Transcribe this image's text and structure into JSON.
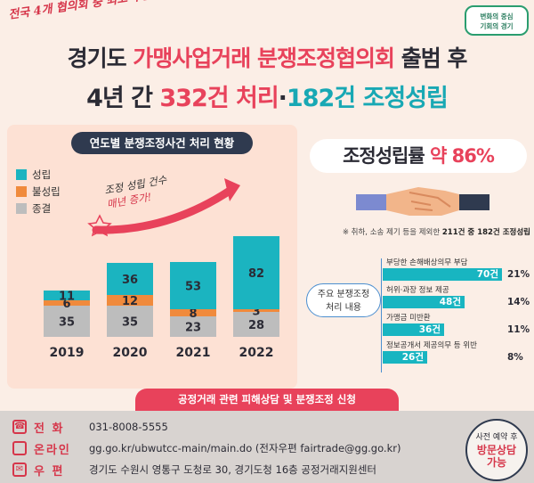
{
  "header": {
    "tagline": "전국 4개 협의회 중 최고 수준!",
    "logo_line1": "변화의 중심",
    "logo_line2": "기회의 경기",
    "title_line1_a": "경기도 ",
    "title_line1_b": "가맹사업거래 분쟁조정협의회",
    "title_line1_c": " 출범 후",
    "title_line2_a": "4년 간 ",
    "title_line2_b": "332건 처리",
    "title_line2_c": "·",
    "title_line2_d": "182건 조정성립"
  },
  "chart_data": {
    "type": "bar",
    "title": "연도별 분쟁조정사건 처리 현황",
    "categories": [
      "2019",
      "2020",
      "2021",
      "2022"
    ],
    "series": [
      {
        "name": "종결",
        "values": [
          35,
          35,
          23,
          28
        ],
        "color": "#bdbdbd"
      },
      {
        "name": "불성립",
        "values": [
          6,
          12,
          8,
          3
        ],
        "color": "#f08a3c"
      },
      {
        "name": "성립",
        "values": [
          11,
          36,
          53,
          82
        ],
        "color": "#1bb4c0"
      }
    ],
    "stacked": true,
    "annotation_a": "조정 성립 건수",
    "annotation_b": "매년 증가!"
  },
  "rate": {
    "label": "조정성립률 ",
    "value": "약 86%",
    "footnote_a": "※ 취하, 소송 제기 등을 제외한 ",
    "footnote_b": "211건 중 182건 조정성립"
  },
  "topics": {
    "label_line1": "주요 분쟁조정",
    "label_line2": "처리 내용",
    "items": [
      {
        "name": "부당한 손해배상의무 부담",
        "count_label": "70건",
        "count": 70,
        "pct": "21%"
      },
      {
        "name": "허위·과장 정보 제공",
        "count_label": "48건",
        "count": 48,
        "pct": "14%"
      },
      {
        "name": "가맹금 미반환",
        "count_label": "36건",
        "count": 36,
        "pct": "11%"
      },
      {
        "name": "정보공개서 제공의무 등 위반",
        "count_label": "26건",
        "count": 26,
        "pct": "8%"
      }
    ]
  },
  "apply": {
    "title": "공정거래 관련 피해상담 및 분쟁조정 신청"
  },
  "contact": {
    "phone_label": "전 화",
    "phone_value": "031-8008-5555",
    "online_label": "온라인",
    "online_value": "gg.go.kr/ubwutcc-main/main.do  (전자우편  fairtrade@gg.go.kr)",
    "mail_label": "우 편",
    "mail_value": "경기도 수원시 영통구 도청로 30, 경기도청 16층 공정거래지원센터"
  },
  "badge": {
    "line1": "사전 예약 후",
    "line2": "방문상담",
    "line3": "가능"
  },
  "colors": {
    "accent_pink": "#e8425b",
    "accent_teal": "#1bb4c0",
    "accent_orange": "#f08a3c",
    "dark_navy": "#2f3a4f"
  }
}
